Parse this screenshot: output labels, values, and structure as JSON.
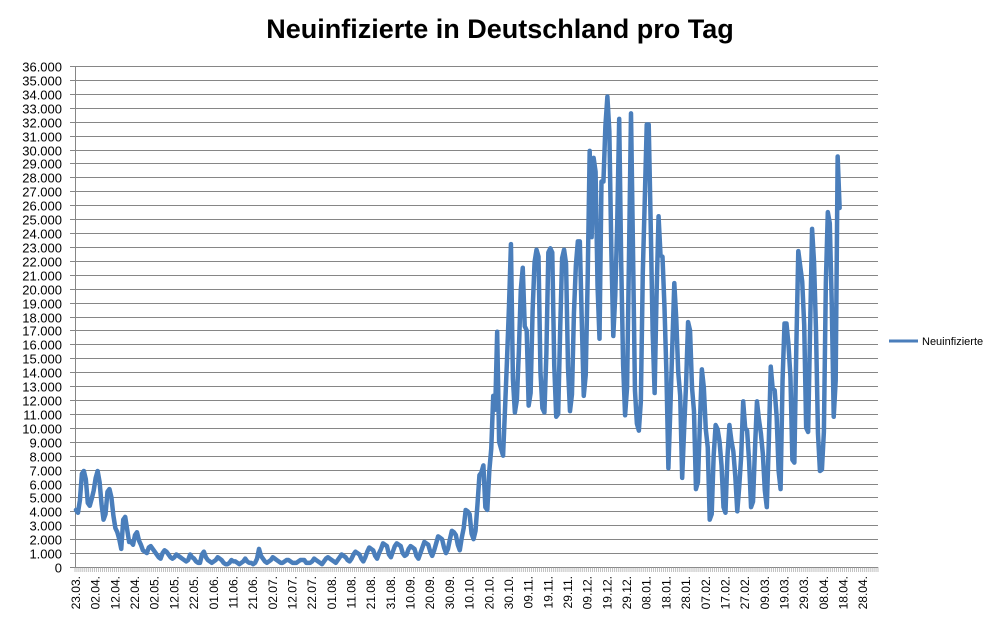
{
  "chart_data": {
    "type": "line",
    "title": "Neuinfizierte in Deutschland pro Tag",
    "xlabel": "",
    "ylabel": "",
    "ylim": [
      0,
      36000
    ],
    "y_tick_step": 1000,
    "y_tick_labels": [
      "0",
      "1.000",
      "2.000",
      "3.000",
      "4.000",
      "5.000",
      "6.000",
      "7.000",
      "8.000",
      "9.000",
      "10.000",
      "11.000",
      "12.000",
      "13.000",
      "14.000",
      "15.000",
      "16.000",
      "17.000",
      "18.000",
      "19.000",
      "20.000",
      "21.000",
      "22.000",
      "23.000",
      "24.000",
      "25.000",
      "26.000",
      "27.000",
      "28.000",
      "29.000",
      "30.000",
      "31.000",
      "32.000",
      "33.000",
      "34.000",
      "35.000",
      "36.000"
    ],
    "x_tick_labels": [
      "23.03.",
      "02.04.",
      "12.04.",
      "22.04.",
      "02.05.",
      "12.05.",
      "22.05.",
      "01.06.",
      "11.06.",
      "21.06.",
      "02.07.",
      "12.07.",
      "22.07.",
      "01.08.",
      "11.08.",
      "21.08.",
      "31.08.",
      "10.09.",
      "20.09.",
      "30.09.",
      "10.10.",
      "20.10.",
      "30.10.",
      "09.11.",
      "19.11.",
      "29.11.",
      "09.12.",
      "19.12.",
      "29.12.",
      "08.01.",
      "18.01.",
      "28.01.",
      "07.02.",
      "17.02.",
      "27.02.",
      "09.03.",
      "19.03.",
      "29.03.",
      "08.04.",
      "18.04.",
      "28.04."
    ],
    "x_label_every": 10,
    "grid": "horizontal",
    "legend_position": "right",
    "series": [
      {
        "name": "Neuinfizierte",
        "color": "#4a7ebb",
        "values": [
          4100,
          3900,
          4800,
          6700,
          6900,
          6300,
          4600,
          4400,
          4900,
          5500,
          6400,
          6900,
          6100,
          4500,
          3400,
          3800,
          5400,
          5600,
          5000,
          3700,
          2800,
          2500,
          2000,
          1300,
          3400,
          3600,
          2700,
          1800,
          1800,
          1600,
          2300,
          2500,
          1900,
          1600,
          1200,
          1100,
          1000,
          1400,
          1500,
          1300,
          1100,
          900,
          700,
          600,
          1000,
          1200,
          1100,
          900,
          700,
          600,
          700,
          900,
          800,
          700,
          600,
          500,
          400,
          500,
          900,
          700,
          600,
          400,
          300,
          300,
          900,
          1100,
          700,
          500,
          400,
          300,
          400,
          500,
          700,
          600,
          500,
          300,
          200,
          200,
          300,
          500,
          400,
          400,
          300,
          200,
          300,
          400,
          600,
          400,
          300,
          300,
          200,
          300,
          600,
          1300,
          800,
          600,
          400,
          300,
          400,
          500,
          700,
          600,
          500,
          400,
          300,
          300,
          400,
          500,
          500,
          400,
          300,
          300,
          300,
          400,
          500,
          500,
          500,
          300,
          300,
          300,
          400,
          600,
          500,
          400,
          300,
          200,
          400,
          600,
          700,
          600,
          500,
          400,
          300,
          500,
          700,
          900,
          800,
          700,
          500,
          400,
          600,
          900,
          1100,
          1000,
          900,
          600,
          400,
          700,
          1100,
          1400,
          1300,
          1200,
          800,
          600,
          1000,
          1300,
          1700,
          1600,
          1500,
          900,
          700,
          1100,
          1500,
          1700,
          1600,
          1500,
          1000,
          800,
          900,
          1300,
          1500,
          1400,
          1300,
          800,
          600,
          1000,
          1400,
          1800,
          1700,
          1600,
          1100,
          800,
          1200,
          1700,
          2200,
          2100,
          2000,
          1400,
          1000,
          1300,
          2000,
          2600,
          2500,
          2300,
          1600,
          1200,
          2100,
          2800,
          4100,
          4000,
          3800,
          2400,
          2000,
          2600,
          4500,
          6600,
          6800,
          7300,
          4300,
          4100,
          6900,
          8500,
          12300,
          11300,
          16900,
          9000,
          8500,
          8000,
          11400,
          14900,
          18700,
          23200,
          13500,
          11100,
          12000,
          15400,
          19900,
          21500,
          17300,
          17000,
          11600,
          12500,
          18400,
          21900,
          22800,
          22300,
          14000,
          11400,
          11100,
          15300,
          22600,
          22900,
          22600,
          14500,
          10800,
          11000,
          17000,
          22200,
          22800,
          21800,
          14300,
          11200,
          12400,
          18200,
          21700,
          23400,
          23400,
          17600,
          12300,
          13800,
          20800,
          29900,
          23700,
          29400,
          28400,
          20200,
          16400,
          27700,
          27700,
          31700,
          33800,
          31300,
          22800,
          16600,
          19500,
          24700,
          32200,
          22000,
          14500,
          10900,
          12900,
          22500,
          32600,
          22900,
          12700,
          10300,
          9800,
          11900,
          21200,
          26400,
          31800,
          31800,
          24700,
          16900,
          12500,
          19600,
          25200,
          22400,
          22300,
          18700,
          13900,
          7100,
          11400,
          15900,
          20400,
          17800,
          14000,
          12300,
          6400,
          9900,
          13200,
          17600,
          17000,
          12900,
          11200,
          5600,
          6100,
          10300,
          14200,
          12900,
          9900,
          8600,
          3400,
          3800,
          8000,
          10200,
          9900,
          9000,
          7300,
          4300,
          3900,
          7900,
          10200,
          9100,
          8300,
          6500,
          4000,
          5800,
          8000,
          11900,
          10000,
          9800,
          7600,
          4300,
          4700,
          8500,
          11900,
          10600,
          9600,
          8100,
          5500,
          4300,
          8900,
          14400,
          12800,
          12700,
          10800,
          6900,
          5600,
          13400,
          17500,
          17500,
          16000,
          13700,
          7700,
          7500,
          15800,
          22700,
          21600,
          20500,
          17400,
          10000,
          9700,
          17100,
          24300,
          21900,
          17000,
          9600,
          6900,
          7000,
          9700,
          20400,
          25500,
          24700,
          18900,
          10800,
          13400,
          29500,
          25800
        ]
      }
    ]
  }
}
